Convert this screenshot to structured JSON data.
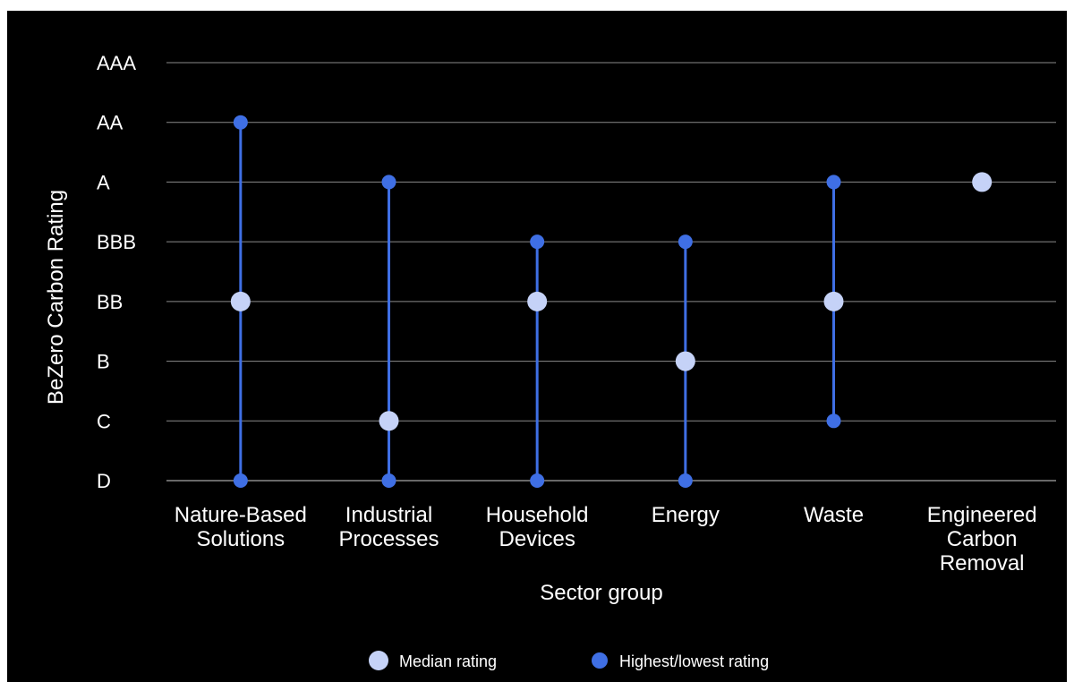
{
  "chart_data": {
    "type": "scatter",
    "title": "",
    "xlabel": "Sector group",
    "ylabel": "BeZero Carbon Rating",
    "y_categories": [
      "D",
      "C",
      "B",
      "BB",
      "BBB",
      "A",
      "AA",
      "AAA"
    ],
    "categories": [
      [
        "Nature-Based",
        "Solutions"
      ],
      [
        "Industrial",
        "Processes"
      ],
      [
        "Household",
        "Devices"
      ],
      [
        "Energy"
      ],
      [
        "Waste"
      ],
      [
        "Engineered",
        "Carbon",
        "Removal"
      ]
    ],
    "series": [
      {
        "name": "Median rating",
        "color": "#c5d2f7",
        "values": [
          "BB",
          "C",
          "BB",
          "B",
          "BB",
          "A"
        ]
      },
      {
        "name": "Highest/lowest rating",
        "color": "#3f6fe4",
        "ranges": [
          [
            "D",
            "AA"
          ],
          [
            "D",
            "A"
          ],
          [
            "D",
            "BBB"
          ],
          [
            "D",
            "BBB"
          ],
          [
            "C",
            "A"
          ],
          null
        ]
      }
    ],
    "grid": true,
    "legend_position": "bottom-center"
  }
}
